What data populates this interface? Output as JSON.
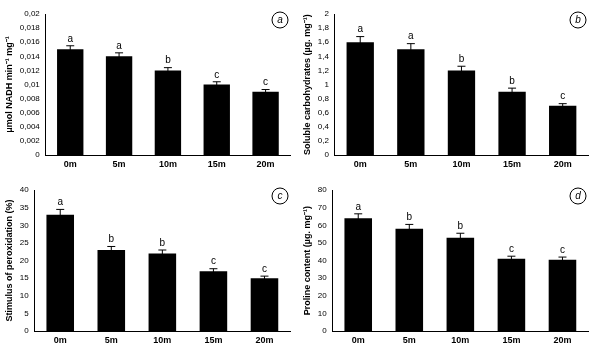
{
  "chart_data": [
    {
      "type": "bar",
      "panel": "a",
      "y_label": "μmol NADH min⁻¹ mg⁻¹",
      "categories": [
        "0m",
        "5m",
        "10m",
        "15m",
        "20m"
      ],
      "values": [
        0.015,
        0.014,
        0.012,
        0.01,
        0.009
      ],
      "errors": [
        0.0005,
        0.0005,
        0.0004,
        0.0004,
        0.0003
      ],
      "letters": [
        "a",
        "a",
        "b",
        "c",
        "c"
      ],
      "color": "#000000",
      "grid": false,
      "ylim": [
        0,
        0.02
      ],
      "yticks": [
        0,
        {
          "value": 0.002,
          "label": "0,002"
        },
        {
          "value": 0.004,
          "label": "0,004"
        },
        {
          "value": 0.006,
          "label": "0,006"
        },
        {
          "value": 0.008,
          "label": "0,008"
        },
        {
          "value": 0.01,
          "label": "0,01"
        },
        {
          "value": 0.012,
          "label": "0,012"
        },
        {
          "value": 0.014,
          "label": "0,014"
        },
        {
          "value": 0.016,
          "label": "0,016"
        },
        {
          "value": 0.018,
          "label": "0,018"
        },
        {
          "value": 0.02,
          "label": "0,02"
        }
      ]
    },
    {
      "type": "bar",
      "panel": "b",
      "y_label": "Soluble carbohydrates (µg. mg⁻¹)",
      "categories": [
        "0m",
        "5m",
        "10m",
        "15m",
        "20m"
      ],
      "values": [
        1.6,
        1.5,
        1.2,
        0.9,
        0.7
      ],
      "errors": [
        0.08,
        0.08,
        0.06,
        0.05,
        0.03
      ],
      "letters": [
        "a",
        "a",
        "b",
        "b",
        "c"
      ],
      "color": "#000000",
      "grid": false,
      "ylim": [
        0,
        2
      ],
      "yticks": [
        0,
        {
          "value": 0.2,
          "label": "0,2"
        },
        {
          "value": 0.4,
          "label": "0,4"
        },
        {
          "value": 0.6,
          "label": "0,6"
        },
        {
          "value": 0.8,
          "label": "0,8"
        },
        1,
        {
          "value": 1.2,
          "label": "1,2"
        },
        {
          "value": 1.4,
          "label": "1,4"
        },
        {
          "value": 1.6,
          "label": "1,6"
        },
        {
          "value": 1.8,
          "label": "1,8"
        },
        2
      ]
    },
    {
      "type": "bar",
      "panel": "c",
      "y_label": "Stimulus of peroxidation (%)",
      "categories": [
        "0m",
        "5m",
        "10m",
        "15m",
        "20m"
      ],
      "values": [
        33,
        23,
        22,
        17,
        15
      ],
      "errors": [
        1.5,
        1,
        1,
        0.7,
        0.6
      ],
      "letters": [
        "a",
        "b",
        "b",
        "c",
        "c"
      ],
      "color": "#000000",
      "grid": false,
      "ylim": [
        0,
        40
      ],
      "yticks": [
        0,
        5,
        10,
        15,
        20,
        25,
        30,
        35,
        40
      ]
    },
    {
      "type": "bar",
      "panel": "d",
      "y_label": "Proline content (µg. mg⁻¹)",
      "categories": [
        "0m",
        "5m",
        "10m",
        "15m",
        "20m"
      ],
      "values": [
        64,
        58,
        53,
        41,
        40.5
      ],
      "errors": [
        2.5,
        2.5,
        2.5,
        1.5,
        1.5
      ],
      "letters": [
        "a",
        "b",
        "b",
        "c",
        "c"
      ],
      "color": "#000000",
      "grid": false,
      "ylim": [
        0,
        80
      ],
      "yticks": [
        0,
        10,
        20,
        30,
        40,
        50,
        60,
        70,
        80
      ]
    }
  ]
}
